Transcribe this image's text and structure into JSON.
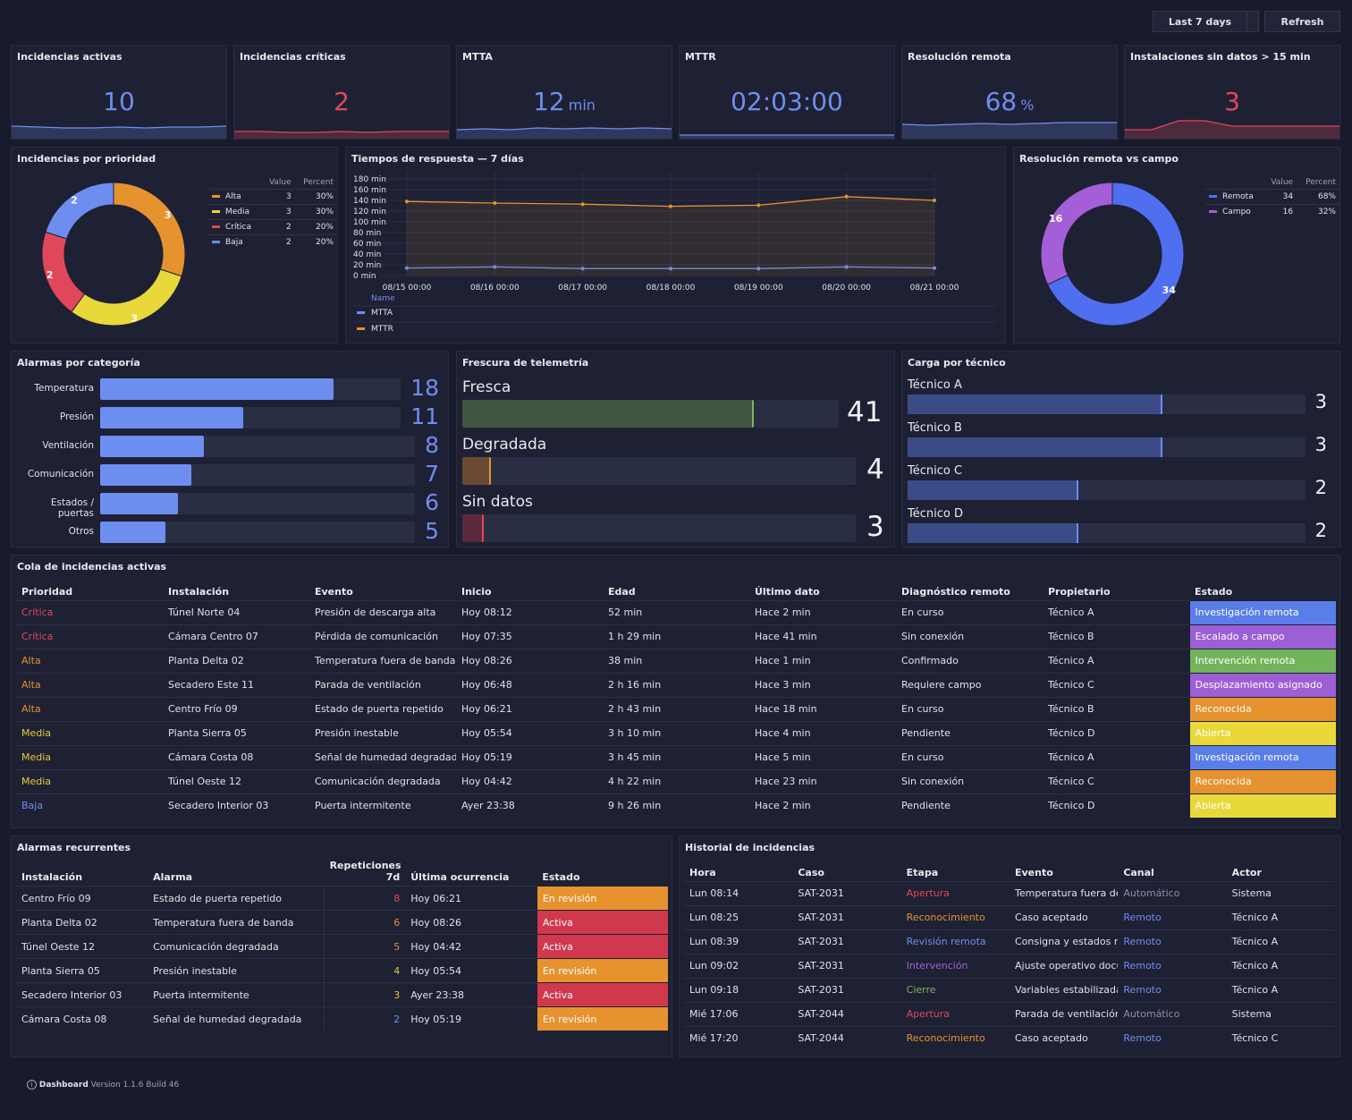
{
  "toolbar": {
    "range_label": "Last 7 days",
    "refresh_label": "Refresh"
  },
  "colors": {
    "blue": "#6e8df0",
    "red": "#e0475b",
    "orange": "#e5922f",
    "yellow": "#e8d83a",
    "green": "#7ab85a",
    "purple": "#a45ed8"
  },
  "stats": [
    {
      "title": "Incidencias activas",
      "value": "10",
      "unit": "",
      "color": "#6e8df0"
    },
    {
      "title": "Incidencias críticas",
      "value": "2",
      "unit": "",
      "color": "#e0475b"
    },
    {
      "title": "MTTA",
      "value": "12",
      "unit": "min",
      "color": "#6e8df0"
    },
    {
      "title": "MTTR",
      "value": "02:03:00",
      "unit": "",
      "color": "#6e8df0"
    },
    {
      "title": "Resolución remota",
      "value": "68",
      "unit": "%",
      "color": "#6e8df0"
    },
    {
      "title": "Instalaciones sin datos > 15 min",
      "value": "3",
      "unit": "",
      "color": "#e0475b"
    }
  ],
  "chart_data": [
    {
      "type": "pie",
      "title": "Incidencias por prioridad",
      "legend_headers": [
        "Value",
        "Percent"
      ],
      "slices": [
        {
          "name": "Alta",
          "value": 3,
          "percent": "30%",
          "color": "#e5922f"
        },
        {
          "name": "Media",
          "value": 3,
          "percent": "30%",
          "color": "#e8d83a"
        },
        {
          "name": "Crítica",
          "value": 2,
          "percent": "20%",
          "color": "#e0475b"
        },
        {
          "name": "Baja",
          "value": 2,
          "percent": "20%",
          "color": "#6e8df0"
        }
      ]
    },
    {
      "type": "line",
      "title": "Tiempos de respuesta — 7 días",
      "x": [
        "08/15 00:00",
        "08/16 00:00",
        "08/17 00:00",
        "08/18 00:00",
        "08/19 00:00",
        "08/20 00:00",
        "08/21 00:00"
      ],
      "y_ticks": [
        "180 min",
        "160 min",
        "140 min",
        "120 min",
        "100 min",
        "80 min",
        "60 min",
        "40 min",
        "20 min",
        "0 min"
      ],
      "ylim": [
        0,
        180
      ],
      "legend_header": "Name",
      "series": [
        {
          "name": "MTTA",
          "color": "#6e8df0",
          "values": [
            14,
            16,
            13,
            13,
            13,
            16,
            14
          ]
        },
        {
          "name": "MTTR",
          "color": "#e5922f",
          "values": [
            138,
            135,
            133,
            129,
            131,
            147,
            140
          ]
        }
      ]
    },
    {
      "type": "pie",
      "title": "Resolución remota vs campo",
      "legend_headers": [
        "Value",
        "Percent"
      ],
      "slices": [
        {
          "name": "Remota",
          "value": 34,
          "percent": "68%",
          "color": "#4f6ef0"
        },
        {
          "name": "Campo",
          "value": 16,
          "percent": "32%",
          "color": "#a45ed8"
        }
      ]
    },
    {
      "type": "bar",
      "title": "Alarmas por categoría",
      "categories": [
        "Temperatura",
        "Presión",
        "Ventilación",
        "Comunicación",
        "Estados / puertas",
        "Otros"
      ],
      "values": [
        18,
        11,
        8,
        7,
        6,
        5
      ],
      "max": 18
    }
  ],
  "freshness": {
    "title": "Frescura de telemetría",
    "items": [
      {
        "label": "Fresca",
        "value": "41",
        "fraction": 0.74,
        "color": "#3f5540",
        "edge": "#7ab85a"
      },
      {
        "label": "Degradada",
        "value": "4",
        "fraction": 0.072,
        "color": "#6b4a33",
        "edge": "#e5922f"
      },
      {
        "label": "Sin datos",
        "value": "3",
        "fraction": 0.055,
        "color": "#5a2a3a",
        "edge": "#e0475b"
      }
    ]
  },
  "workload": {
    "title": "Carga por técnico",
    "items": [
      {
        "label": "Técnico A",
        "value": "3",
        "fraction": 0.64
      },
      {
        "label": "Técnico B",
        "value": "3",
        "fraction": 0.64
      },
      {
        "label": "Técnico C",
        "value": "2",
        "fraction": 0.43
      },
      {
        "label": "Técnico D",
        "value": "2",
        "fraction": 0.43
      }
    ]
  },
  "queue": {
    "title": "Cola de incidencias activas",
    "headers": [
      "Prioridad",
      "Instalación",
      "Evento",
      "Inicio",
      "Edad",
      "Último dato",
      "Diagnóstico remoto",
      "Propietario",
      "Estado"
    ],
    "rows": [
      {
        "prio": "Crítica",
        "prio_color": "#e0475b",
        "inst": "Túnel Norte 04",
        "evento": "Presión de descarga alta",
        "inicio": "Hoy 08:12",
        "edad": "52 min",
        "ultimo": "Hace 2 min",
        "diag": "En curso",
        "owner": "Técnico A",
        "estado": "Investigación remota",
        "estado_color": "#5a7ee8"
      },
      {
        "prio": "Crítica",
        "prio_color": "#e0475b",
        "inst": "Cámara Centro 07",
        "evento": "Pérdida de comunicación",
        "inicio": "Hoy 07:35",
        "edad": "1 h 29 min",
        "ultimo": "Hace 41 min",
        "diag": "Sin conexión",
        "owner": "Técnico B",
        "estado": "Escalado a campo",
        "estado_color": "#9c5fd6"
      },
      {
        "prio": "Alta",
        "prio_color": "#e5922f",
        "inst": "Planta Delta 02",
        "evento": "Temperatura fuera de banda",
        "inicio": "Hoy 08:26",
        "edad": "38 min",
        "ultimo": "Hace 1 min",
        "diag": "Confirmado",
        "owner": "Técnico A",
        "estado": "Intervención remota",
        "estado_color": "#72b45a"
      },
      {
        "prio": "Alta",
        "prio_color": "#e5922f",
        "inst": "Secadero Este 11",
        "evento": "Parada de ventilación",
        "inicio": "Hoy 06:48",
        "edad": "2 h 16 min",
        "ultimo": "Hace 3 min",
        "diag": "Requiere campo",
        "owner": "Técnico C",
        "estado": "Desplazamiento asignado",
        "estado_color": "#9c5fd6"
      },
      {
        "prio": "Alta",
        "prio_color": "#e5922f",
        "inst": "Centro Frío 09",
        "evento": "Estado de puerta repetido",
        "inicio": "Hoy 06:21",
        "edad": "2 h 43 min",
        "ultimo": "Hace 18 min",
        "diag": "En curso",
        "owner": "Técnico B",
        "estado": "Reconocida",
        "estado_color": "#e5922f"
      },
      {
        "prio": "Media",
        "prio_color": "#e8c83a",
        "inst": "Planta Sierra 05",
        "evento": "Presión inestable",
        "inicio": "Hoy 05:54",
        "edad": "3 h 10 min",
        "ultimo": "Hace 4 min",
        "diag": "Pendiente",
        "owner": "Técnico D",
        "estado": "Abierta",
        "estado_color": "#e8d83a"
      },
      {
        "prio": "Media",
        "prio_color": "#e8c83a",
        "inst": "Cámara Costa 08",
        "evento": "Señal de humedad degradada",
        "inicio": "Hoy 05:19",
        "edad": "3 h 45 min",
        "ultimo": "Hace 5 min",
        "diag": "En curso",
        "owner": "Técnico A",
        "estado": "Investigación remota",
        "estado_color": "#5a7ee8"
      },
      {
        "prio": "Media",
        "prio_color": "#e8c83a",
        "inst": "Túnel Oeste 12",
        "evento": "Comunicación degradada",
        "inicio": "Hoy 04:42",
        "edad": "4 h 22 min",
        "ultimo": "Hace 23 min",
        "diag": "Sin conexión",
        "owner": "Técnico C",
        "estado": "Reconocida",
        "estado_color": "#e5922f"
      },
      {
        "prio": "Baja",
        "prio_color": "#6e8df0",
        "inst": "Secadero Interior 03",
        "evento": "Puerta intermitente",
        "inicio": "Ayer 23:38",
        "edad": "9 h 26 min",
        "ultimo": "Hace 2 min",
        "diag": "Pendiente",
        "owner": "Técnico D",
        "estado": "Abierta",
        "estado_color": "#e8d83a"
      }
    ]
  },
  "recurring": {
    "title": "Alarmas recurrentes",
    "headers": [
      "Instalación",
      "Alarma",
      "Repeticiones 7d",
      "Última ocurrencia",
      "Estado"
    ],
    "rows": [
      {
        "inst": "Centro Frío 09",
        "alarma": "Estado de puerta repetido",
        "rep": "8",
        "rep_color": "#e0475b",
        "ultima": "Hoy 06:21",
        "estado": "En revisión",
        "estado_color": "#e5922f"
      },
      {
        "inst": "Planta Delta 02",
        "alarma": "Temperatura fuera de banda",
        "rep": "6",
        "rep_color": "#e5922f",
        "ultima": "Hoy 08:26",
        "estado": "Activa",
        "estado_color": "#d0384e"
      },
      {
        "inst": "Túnel Oeste 12",
        "alarma": "Comunicación degradada",
        "rep": "5",
        "rep_color": "#e5922f",
        "ultima": "Hoy 04:42",
        "estado": "Activa",
        "estado_color": "#d0384e"
      },
      {
        "inst": "Planta Sierra 05",
        "alarma": "Presión inestable",
        "rep": "4",
        "rep_color": "#e8c83a",
        "ultima": "Hoy 05:54",
        "estado": "En revisión",
        "estado_color": "#e5922f"
      },
      {
        "inst": "Secadero Interior 03",
        "alarma": "Puerta intermitente",
        "rep": "3",
        "rep_color": "#e8c83a",
        "ultima": "Ayer 23:38",
        "estado": "Activa",
        "estado_color": "#d0384e"
      },
      {
        "inst": "Cámara Costa 08",
        "alarma": "Señal de humedad degradada",
        "rep": "2",
        "rep_color": "#6e8df0",
        "ultima": "Hoy 05:19",
        "estado": "En revisión",
        "estado_color": "#e5922f"
      }
    ]
  },
  "history": {
    "title": "Historial de incidencias",
    "headers": [
      "Hora",
      "Caso",
      "Etapa",
      "Evento",
      "Canal",
      "Actor"
    ],
    "rows": [
      {
        "hora": "Lun 08:14",
        "caso": "SAT-2031",
        "etapa": "Apertura",
        "etapa_color": "#e0475b",
        "evento": "Temperatura fuera de banda",
        "canal": "Automático",
        "canal_color": "#8a8ea4",
        "actor": "Sistema"
      },
      {
        "hora": "Lun 08:25",
        "caso": "SAT-2031",
        "etapa": "Reconocimiento",
        "etapa_color": "#e5922f",
        "evento": "Caso aceptado",
        "canal": "Remoto",
        "canal_color": "#6e8df0",
        "actor": "Técnico A"
      },
      {
        "hora": "Lun 08:39",
        "caso": "SAT-2031",
        "etapa": "Revisión remota",
        "etapa_color": "#6e8df0",
        "evento": "Consigna y estados revisados",
        "canal": "Remoto",
        "canal_color": "#6e8df0",
        "actor": "Técnico A"
      },
      {
        "hora": "Lun 09:02",
        "caso": "SAT-2031",
        "etapa": "Intervención",
        "etapa_color": "#a45ed8",
        "evento": "Ajuste operativo documentado",
        "canal": "Remoto",
        "canal_color": "#6e8df0",
        "actor": "Técnico A"
      },
      {
        "hora": "Lun 09:18",
        "caso": "SAT-2031",
        "etapa": "Cierre",
        "etapa_color": "#7ab85a",
        "evento": "Variables estabilizadas",
        "canal": "Remoto",
        "canal_color": "#6e8df0",
        "actor": "Técnico A"
      },
      {
        "hora": "Mié 17:06",
        "caso": "SAT-2044",
        "etapa": "Apertura",
        "etapa_color": "#e0475b",
        "evento": "Parada de ventilación",
        "canal": "Automático",
        "canal_color": "#8a8ea4",
        "actor": "Sistema"
      },
      {
        "hora": "Mié 17:20",
        "caso": "SAT-2044",
        "etapa": "Reconocimiento",
        "etapa_color": "#e5922f",
        "evento": "Caso aceptado",
        "canal": "Remoto",
        "canal_color": "#6e8df0",
        "actor": "Técnico C"
      }
    ]
  },
  "footer": {
    "app": "Dashboard",
    "version": "Version 1.1.6 Build 46"
  }
}
